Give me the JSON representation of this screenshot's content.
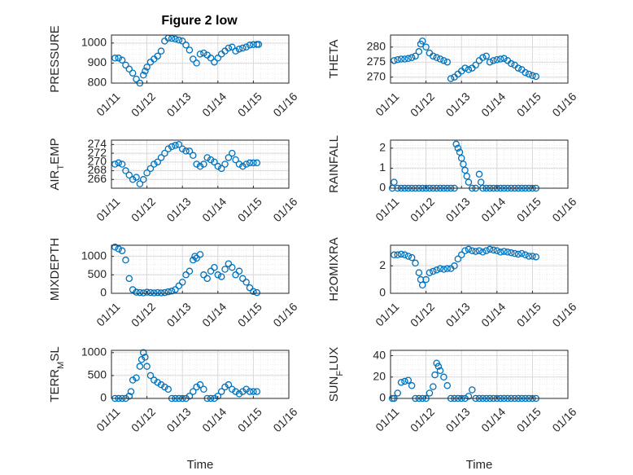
{
  "figure": {
    "title": "Figure 2 low"
  },
  "colors": {
    "marker": "#0072BD",
    "grid": "#d9d9d9",
    "axis": "#262626"
  },
  "chart_data": [
    {
      "type": "scatter",
      "ylabel": "PRESSURE",
      "xlabel": "",
      "ylim": [
        800,
        1040
      ],
      "yticks": [
        "800",
        "900",
        "1000"
      ],
      "xticks": [
        "01/11",
        "01/12",
        "01/13",
        "01/14",
        "01/15",
        "01/16"
      ],
      "grid": "on",
      "x": [
        11.1,
        11.2,
        11.3,
        11.4,
        11.5,
        11.6,
        11.7,
        11.8,
        11.9,
        11.95,
        12.0,
        12.1,
        12.2,
        12.3,
        12.4,
        12.5,
        12.6,
        12.7,
        12.8,
        12.9,
        13.0,
        13.1,
        13.2,
        13.3,
        13.4,
        13.5,
        13.6,
        13.7,
        13.8,
        13.9,
        14.0,
        14.1,
        14.2,
        14.3,
        14.4,
        14.5,
        14.6,
        14.7,
        14.8,
        14.9,
        15.0,
        15.1,
        15.15
      ],
      "y": [
        925,
        925,
        915,
        890,
        870,
        850,
        820,
        800,
        840,
        860,
        880,
        905,
        920,
        935,
        960,
        1010,
        1025,
        1023,
        1020,
        1015,
        1010,
        990,
        965,
        920,
        900,
        945,
        950,
        940,
        925,
        905,
        925,
        945,
        960,
        975,
        980,
        960,
        970,
        975,
        980,
        990,
        992,
        993,
        993
      ]
    },
    {
      "type": "scatter",
      "ylabel": "THETA",
      "xlabel": "",
      "ylim": [
        268,
        284
      ],
      "yticks": [
        "270",
        "275",
        "280"
      ],
      "xticks": [
        "01/11",
        "01/12",
        "01/13",
        "01/14",
        "01/15",
        "01/16"
      ],
      "grid": "on",
      "x": [
        11.1,
        11.2,
        11.3,
        11.4,
        11.5,
        11.6,
        11.7,
        11.8,
        11.85,
        11.9,
        12.0,
        12.1,
        12.2,
        12.3,
        12.4,
        12.5,
        12.6,
        12.7,
        12.8,
        12.9,
        13.0,
        13.1,
        13.2,
        13.3,
        13.4,
        13.5,
        13.6,
        13.7,
        13.8,
        13.9,
        14.0,
        14.1,
        14.2,
        14.3,
        14.4,
        14.5,
        14.6,
        14.7,
        14.8,
        14.9,
        15.0,
        15.1
      ],
      "y": [
        275.5,
        275.8,
        276,
        276,
        276.2,
        276.5,
        277,
        278.5,
        281,
        282,
        280,
        278,
        277,
        276.5,
        276,
        275.5,
        275,
        269.5,
        270,
        271,
        272,
        273,
        272.5,
        273,
        274,
        275.5,
        276.5,
        277,
        275,
        275.5,
        275.8,
        276,
        276.2,
        275.5,
        274.5,
        274,
        273,
        272.5,
        271.5,
        271,
        270.5,
        270.2
      ]
    },
    {
      "type": "scatter",
      "ylabel": "AIR_TEMP",
      "xlabel": "",
      "ylim": [
        264,
        275
      ],
      "yticks": [
        "266",
        "268",
        "270",
        "272",
        "274"
      ],
      "xticks": [
        "01/11",
        "01/12",
        "01/13",
        "01/14",
        "01/15",
        "01/16"
      ],
      "grid": "on",
      "x": [
        11.1,
        11.2,
        11.3,
        11.4,
        11.5,
        11.6,
        11.7,
        11.8,
        11.9,
        12.0,
        12.1,
        12.2,
        12.3,
        12.4,
        12.5,
        12.6,
        12.7,
        12.8,
        12.9,
        13.0,
        13.1,
        13.2,
        13.3,
        13.4,
        13.5,
        13.6,
        13.7,
        13.8,
        13.9,
        14.0,
        14.1,
        14.2,
        14.3,
        14.4,
        14.5,
        14.6,
        14.7,
        14.8,
        14.9,
        15.0,
        15.1
      ],
      "y": [
        269.5,
        269.8,
        269.5,
        268,
        267,
        266,
        266.5,
        265,
        266,
        267.5,
        268.5,
        269.5,
        270,
        271,
        272,
        273,
        273.5,
        273.8,
        274,
        273,
        272.5,
        272.5,
        271.5,
        269.5,
        269,
        269.5,
        271,
        270.5,
        270,
        269,
        268.5,
        269.5,
        271,
        272,
        270.5,
        269.5,
        269,
        269.5,
        269.8,
        269.8,
        269.8
      ]
    },
    {
      "type": "scatter",
      "ylabel": "RAINFALL",
      "xlabel": "",
      "ylim": [
        0,
        2.4
      ],
      "yticks": [
        "0",
        "1",
        "2"
      ],
      "xticks": [
        "01/11",
        "01/12",
        "01/13",
        "01/14",
        "01/15",
        "01/16"
      ],
      "grid": "on",
      "x": [
        11.05,
        11.1,
        11.2,
        11.3,
        11.4,
        11.5,
        11.6,
        11.7,
        11.8,
        11.9,
        12.0,
        12.1,
        12.2,
        12.3,
        12.4,
        12.5,
        12.6,
        12.7,
        12.8,
        12.85,
        12.9,
        12.95,
        13.0,
        13.05,
        13.1,
        13.15,
        13.2,
        13.3,
        13.4,
        13.5,
        13.55,
        13.6,
        13.7,
        13.8,
        13.9,
        14.0,
        14.1,
        14.2,
        14.3,
        14.4,
        14.5,
        14.6,
        14.7,
        14.8,
        14.9,
        15.0,
        15.1
      ],
      "y": [
        0,
        0.3,
        0,
        0,
        0,
        0,
        0,
        0,
        0,
        0,
        0,
        0,
        0,
        0,
        0,
        0,
        0,
        0,
        0,
        2.2,
        2.0,
        1.8,
        1.5,
        1.2,
        0.9,
        0.6,
        0.3,
        0,
        0,
        0.7,
        0.3,
        0,
        0,
        0,
        0,
        0,
        0,
        0,
        0,
        0,
        0,
        0,
        0,
        0,
        0,
        0,
        0
      ]
    },
    {
      "type": "scatter",
      "ylabel": "MIXDEPTH",
      "xlabel": "",
      "ylim": [
        0,
        1300
      ],
      "yticks": [
        "0",
        "500",
        "1000"
      ],
      "xticks": [
        "01/11",
        "01/12",
        "01/13",
        "01/14",
        "01/15",
        "01/16"
      ],
      "grid": "on",
      "x": [
        11.1,
        11.2,
        11.3,
        11.4,
        11.5,
        11.6,
        11.7,
        11.8,
        11.9,
        12.0,
        12.1,
        12.2,
        12.3,
        12.4,
        12.5,
        12.6,
        12.7,
        12.8,
        12.9,
        13.0,
        13.1,
        13.2,
        13.3,
        13.35,
        13.4,
        13.5,
        13.6,
        13.7,
        13.8,
        13.9,
        14.0,
        14.1,
        14.2,
        14.3,
        14.4,
        14.5,
        14.6,
        14.7,
        14.8,
        14.9,
        15.0,
        15.1
      ],
      "y": [
        1250,
        1200,
        1150,
        900,
        400,
        100,
        30,
        20,
        10,
        30,
        20,
        10,
        20,
        10,
        20,
        40,
        60,
        100,
        200,
        300,
        500,
        600,
        900,
        1000,
        950,
        1050,
        500,
        400,
        600,
        700,
        500,
        450,
        650,
        800,
        700,
        500,
        600,
        400,
        300,
        150,
        50,
        20
      ]
    },
    {
      "type": "scatter",
      "ylabel": "H2OMIXRA",
      "xlabel": "",
      "ylim": [
        0,
        3.5
      ],
      "yticks": [
        "0",
        "2"
      ],
      "xticks": [
        "01/11",
        "01/12",
        "01/13",
        "01/14",
        "01/15",
        "01/16"
      ],
      "grid": "on",
      "x": [
        11.1,
        11.2,
        11.3,
        11.4,
        11.5,
        11.6,
        11.7,
        11.8,
        11.85,
        11.9,
        12.0,
        12.1,
        12.2,
        12.3,
        12.4,
        12.5,
        12.6,
        12.7,
        12.8,
        12.9,
        13.0,
        13.1,
        13.2,
        13.3,
        13.4,
        13.5,
        13.6,
        13.7,
        13.8,
        13.9,
        14.0,
        14.1,
        14.2,
        14.3,
        14.4,
        14.5,
        14.6,
        14.7,
        14.8,
        14.9,
        15.0,
        15.1
      ],
      "y": [
        2.8,
        2.8,
        2.85,
        2.8,
        2.7,
        2.6,
        2.2,
        1.5,
        1.0,
        0.6,
        1.0,
        1.5,
        1.6,
        1.7,
        1.8,
        1.75,
        1.8,
        1.8,
        2.0,
        2.5,
        2.8,
        3.1,
        3.2,
        3.1,
        3.05,
        3.1,
        3.0,
        3.1,
        3.2,
        3.15,
        3.1,
        3.0,
        3.05,
        3.0,
        2.95,
        2.9,
        2.85,
        2.9,
        2.8,
        2.7,
        2.7,
        2.65
      ]
    },
    {
      "type": "scatter",
      "ylabel": "TERR_MSL",
      "xlabel": "Time",
      "ylim": [
        0,
        1050
      ],
      "yticks": [
        "0",
        "500",
        "1000"
      ],
      "xticks": [
        "01/11",
        "01/12",
        "01/13",
        "01/14",
        "01/15",
        "01/16"
      ],
      "grid": "on",
      "x": [
        11.1,
        11.2,
        11.3,
        11.4,
        11.5,
        11.55,
        11.6,
        11.7,
        11.8,
        11.85,
        11.9,
        11.95,
        12.0,
        12.1,
        12.2,
        12.3,
        12.4,
        12.5,
        12.6,
        12.7,
        12.8,
        12.9,
        13.0,
        13.1,
        13.2,
        13.3,
        13.4,
        13.5,
        13.6,
        13.7,
        13.8,
        13.9,
        14.0,
        14.1,
        14.2,
        14.3,
        14.4,
        14.5,
        14.6,
        14.7,
        14.8,
        14.9,
        15.0,
        15.1
      ],
      "y": [
        0,
        0,
        0,
        0,
        50,
        150,
        400,
        450,
        700,
        850,
        1000,
        900,
        700,
        500,
        400,
        350,
        300,
        250,
        200,
        0,
        0,
        0,
        0,
        0,
        50,
        150,
        250,
        300,
        200,
        0,
        0,
        0,
        50,
        150,
        250,
        300,
        200,
        150,
        100,
        150,
        200,
        150,
        150,
        150
      ]
    },
    {
      "type": "scatter",
      "ylabel": "SUN_FLUX",
      "xlabel": "Time",
      "ylim": [
        0,
        45
      ],
      "yticks": [
        "0",
        "20",
        "40"
      ],
      "xticks": [
        "01/11",
        "01/12",
        "01/13",
        "01/14",
        "01/15",
        "01/16"
      ],
      "grid": "on",
      "x": [
        11.05,
        11.1,
        11.2,
        11.3,
        11.4,
        11.5,
        11.6,
        11.7,
        11.8,
        11.9,
        12.0,
        12.1,
        12.2,
        12.25,
        12.3,
        12.35,
        12.4,
        12.5,
        12.6,
        12.7,
        12.8,
        12.9,
        13.0,
        13.1,
        13.2,
        13.3,
        13.4,
        13.5,
        13.6,
        13.7,
        13.8,
        13.9,
        14.0,
        14.1,
        14.2,
        14.3,
        14.4,
        14.5,
        14.6,
        14.7,
        14.8,
        14.9,
        15.0,
        15.1
      ],
      "y": [
        0,
        0,
        5,
        15,
        16,
        17,
        12,
        0,
        0,
        0,
        0,
        5,
        11,
        22,
        33,
        30,
        26,
        20,
        12,
        0,
        0,
        0,
        0,
        0,
        2,
        8,
        0,
        0,
        0,
        0,
        0,
        0,
        0,
        0,
        0,
        0,
        0,
        0,
        0,
        0,
        0,
        0,
        0,
        0
      ]
    }
  ]
}
